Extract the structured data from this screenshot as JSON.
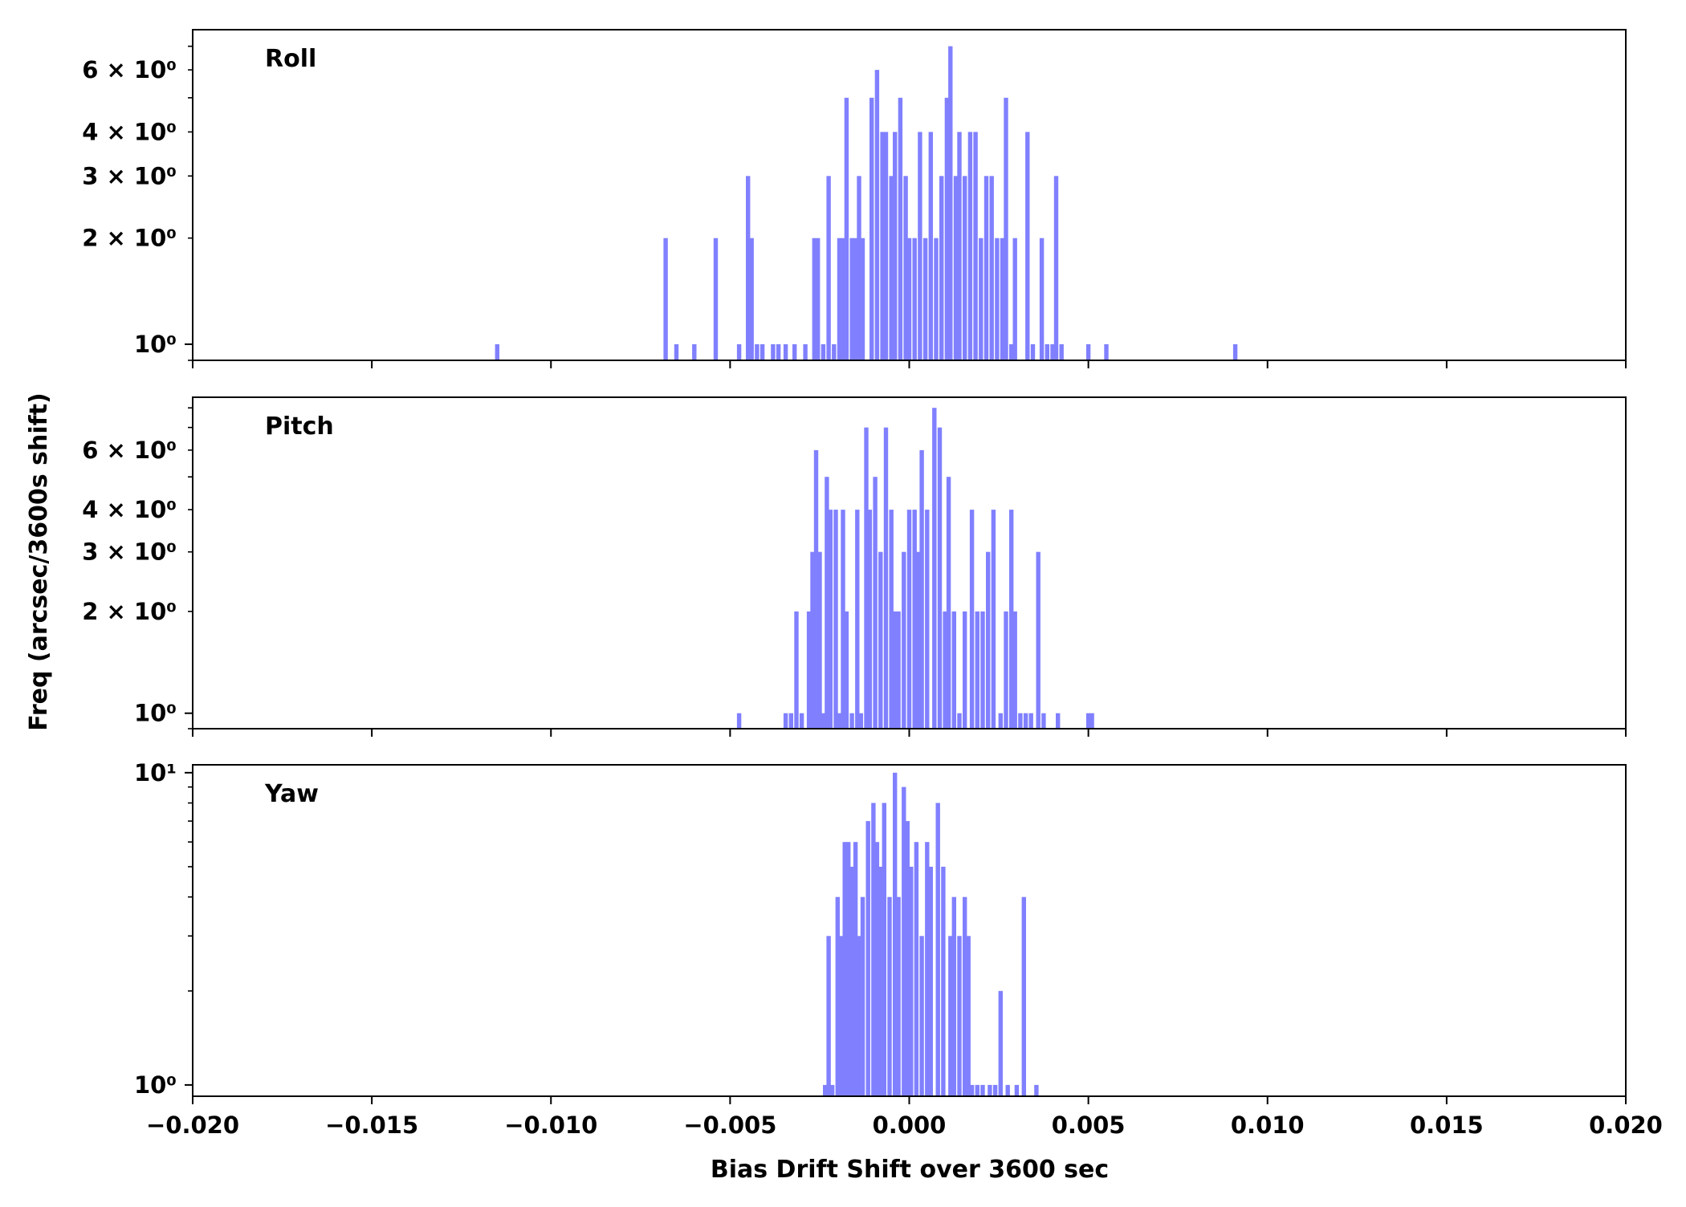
{
  "figure": {
    "ylabel": "Freq (arcsec/3600s shift)",
    "xlabel": "Bias Drift Shift over 3600 sec"
  },
  "chart_data": [
    {
      "type": "bar",
      "title": "Roll",
      "xlabel": "",
      "ylabel": "",
      "xlim": [
        -0.02,
        0.02
      ],
      "ylim": [
        0.9,
        7.8
      ],
      "yscale": "log",
      "bar_color": "#8080ff",
      "bin_width": 0.00012,
      "yticks": [
        {
          "value": 1,
          "label": "10⁰"
        },
        {
          "value": 2,
          "label": "2 × 10⁰"
        },
        {
          "value": 3,
          "label": "3 × 10⁰"
        },
        {
          "value": 4,
          "label": "4 × 10⁰"
        },
        {
          "value": 6,
          "label": "6 × 10⁰"
        }
      ],
      "bins": [
        {
          "x": -0.0115,
          "count": 1
        },
        {
          "x": -0.0068,
          "count": 2
        },
        {
          "x": -0.0065,
          "count": 1
        },
        {
          "x": -0.006,
          "count": 1
        },
        {
          "x": -0.0054,
          "count": 2
        },
        {
          "x": -0.00475,
          "count": 1
        },
        {
          "x": -0.0045,
          "count": 3
        },
        {
          "x": -0.0044,
          "count": 2
        },
        {
          "x": -0.00425,
          "count": 1
        },
        {
          "x": -0.0041,
          "count": 1
        },
        {
          "x": -0.0038,
          "count": 1
        },
        {
          "x": -0.00365,
          "count": 1
        },
        {
          "x": -0.00345,
          "count": 1
        },
        {
          "x": -0.0032,
          "count": 1
        },
        {
          "x": -0.0029,
          "count": 1
        },
        {
          "x": -0.00265,
          "count": 2
        },
        {
          "x": -0.00255,
          "count": 2
        },
        {
          "x": -0.0024,
          "count": 1
        },
        {
          "x": -0.00225,
          "count": 3
        },
        {
          "x": -0.0021,
          "count": 1
        },
        {
          "x": -0.00195,
          "count": 2
        },
        {
          "x": -0.00185,
          "count": 2
        },
        {
          "x": -0.00175,
          "count": 5
        },
        {
          "x": -0.0016,
          "count": 2
        },
        {
          "x": -0.0015,
          "count": 2
        },
        {
          "x": -0.0014,
          "count": 3
        },
        {
          "x": -0.0013,
          "count": 2
        },
        {
          "x": -0.00105,
          "count": 5
        },
        {
          "x": -0.0009,
          "count": 6
        },
        {
          "x": -0.00075,
          "count": 4
        },
        {
          "x": -0.00065,
          "count": 4
        },
        {
          "x": -0.0005,
          "count": 3
        },
        {
          "x": -0.0004,
          "count": 4
        },
        {
          "x": -0.00025,
          "count": 5
        },
        {
          "x": -0.0001,
          "count": 3
        },
        {
          "x": 0.0,
          "count": 2
        },
        {
          "x": 0.00015,
          "count": 2
        },
        {
          "x": 0.0003,
          "count": 4
        },
        {
          "x": 0.00045,
          "count": 2
        },
        {
          "x": 0.0006,
          "count": 4
        },
        {
          "x": 0.00075,
          "count": 2
        },
        {
          "x": 0.0009,
          "count": 3
        },
        {
          "x": 0.00105,
          "count": 5
        },
        {
          "x": 0.00115,
          "count": 7
        },
        {
          "x": 0.0013,
          "count": 3
        },
        {
          "x": 0.0014,
          "count": 4
        },
        {
          "x": 0.00155,
          "count": 3
        },
        {
          "x": 0.0017,
          "count": 4
        },
        {
          "x": 0.00185,
          "count": 4
        },
        {
          "x": 0.002,
          "count": 2
        },
        {
          "x": 0.00215,
          "count": 3
        },
        {
          "x": 0.0023,
          "count": 3
        },
        {
          "x": 0.00245,
          "count": 2
        },
        {
          "x": 0.0026,
          "count": 2
        },
        {
          "x": 0.0027,
          "count": 5
        },
        {
          "x": 0.00285,
          "count": 1
        },
        {
          "x": 0.00295,
          "count": 2
        },
        {
          "x": 0.0033,
          "count": 4
        },
        {
          "x": 0.00345,
          "count": 1
        },
        {
          "x": 0.0037,
          "count": 2
        },
        {
          "x": 0.00385,
          "count": 1
        },
        {
          "x": 0.004,
          "count": 1
        },
        {
          "x": 0.0041,
          "count": 3
        },
        {
          "x": 0.00425,
          "count": 1
        },
        {
          "x": 0.005,
          "count": 1
        },
        {
          "x": 0.0055,
          "count": 1
        },
        {
          "x": 0.0091,
          "count": 1
        }
      ]
    },
    {
      "type": "bar",
      "title": "Pitch",
      "xlabel": "",
      "ylabel": "",
      "xlim": [
        -0.02,
        0.02
      ],
      "ylim": [
        0.9,
        8.6
      ],
      "yscale": "log",
      "bar_color": "#8080ff",
      "bin_width": 0.00012,
      "yticks": [
        {
          "value": 1,
          "label": "10⁰"
        },
        {
          "value": 2,
          "label": "2 × 10⁰"
        },
        {
          "value": 3,
          "label": "3 × 10⁰"
        },
        {
          "value": 4,
          "label": "4 × 10⁰"
        },
        {
          "value": 6,
          "label": "6 × 10⁰"
        }
      ],
      "bins": [
        {
          "x": -0.00475,
          "count": 1
        },
        {
          "x": -0.00345,
          "count": 1
        },
        {
          "x": -0.0033,
          "count": 1
        },
        {
          "x": -0.00315,
          "count": 2
        },
        {
          "x": -0.003,
          "count": 1
        },
        {
          "x": -0.0028,
          "count": 2
        },
        {
          "x": -0.00275,
          "count": 1
        },
        {
          "x": -0.0027,
          "count": 3
        },
        {
          "x": -0.0026,
          "count": 6
        },
        {
          "x": -0.0025,
          "count": 3
        },
        {
          "x": -0.0024,
          "count": 1
        },
        {
          "x": -0.0023,
          "count": 5
        },
        {
          "x": -0.0022,
          "count": 4
        },
        {
          "x": -0.00205,
          "count": 4
        },
        {
          "x": -0.00195,
          "count": 1
        },
        {
          "x": -0.00185,
          "count": 4
        },
        {
          "x": -0.00175,
          "count": 2
        },
        {
          "x": -0.0016,
          "count": 1
        },
        {
          "x": -0.00145,
          "count": 4
        },
        {
          "x": -0.00135,
          "count": 1
        },
        {
          "x": -0.0012,
          "count": 7
        },
        {
          "x": -0.0011,
          "count": 4
        },
        {
          "x": -0.00095,
          "count": 5
        },
        {
          "x": -0.0008,
          "count": 3
        },
        {
          "x": -0.00065,
          "count": 7
        },
        {
          "x": -0.0005,
          "count": 4
        },
        {
          "x": -0.0004,
          "count": 2
        },
        {
          "x": -0.0003,
          "count": 2
        },
        {
          "x": -0.00015,
          "count": 3
        },
        {
          "x": 0.0,
          "count": 4
        },
        {
          "x": 0.00015,
          "count": 4
        },
        {
          "x": 0.00025,
          "count": 3
        },
        {
          "x": 0.00035,
          "count": 6
        },
        {
          "x": 0.0005,
          "count": 4
        },
        {
          "x": 0.0007,
          "count": 8
        },
        {
          "x": 0.00085,
          "count": 7
        },
        {
          "x": 0.001,
          "count": 2
        },
        {
          "x": 0.0011,
          "count": 5
        },
        {
          "x": 0.00125,
          "count": 2
        },
        {
          "x": 0.0014,
          "count": 1
        },
        {
          "x": 0.00155,
          "count": 2
        },
        {
          "x": 0.00175,
          "count": 4
        },
        {
          "x": 0.0019,
          "count": 2
        },
        {
          "x": 0.00205,
          "count": 2
        },
        {
          "x": 0.0022,
          "count": 3
        },
        {
          "x": 0.00235,
          "count": 4
        },
        {
          "x": 0.00255,
          "count": 1
        },
        {
          "x": 0.0027,
          "count": 2
        },
        {
          "x": 0.00285,
          "count": 4
        },
        {
          "x": 0.00295,
          "count": 2
        },
        {
          "x": 0.0031,
          "count": 1
        },
        {
          "x": 0.00325,
          "count": 1
        },
        {
          "x": 0.0034,
          "count": 1
        },
        {
          "x": 0.0036,
          "count": 3
        },
        {
          "x": 0.00375,
          "count": 1
        },
        {
          "x": 0.00415,
          "count": 1
        },
        {
          "x": 0.005,
          "count": 1
        },
        {
          "x": 0.0051,
          "count": 1
        }
      ]
    },
    {
      "type": "bar",
      "title": "Yaw",
      "xlabel": "",
      "ylabel": "",
      "xlim": [
        -0.02,
        0.02
      ],
      "ylim": [
        0.92,
        10.6
      ],
      "yscale": "log",
      "bar_color": "#8080ff",
      "bin_width": 0.00012,
      "xticks": [
        -0.02,
        -0.015,
        -0.01,
        -0.005,
        0.0,
        0.005,
        0.01,
        0.015,
        0.02
      ],
      "xtick_labels": [
        "−0.020",
        "−0.015",
        "−0.010",
        "−0.005",
        "0.000",
        "0.005",
        "0.010",
        "0.015",
        "0.020"
      ],
      "yticks": [
        {
          "value": 1,
          "label": "10⁰"
        },
        {
          "value": 10,
          "label": "10¹"
        }
      ],
      "bins": [
        {
          "x": -0.00235,
          "count": 1
        },
        {
          "x": -0.00225,
          "count": 3
        },
        {
          "x": -0.00215,
          "count": 1
        },
        {
          "x": -0.002,
          "count": 4
        },
        {
          "x": -0.0019,
          "count": 3
        },
        {
          "x": -0.0018,
          "count": 6
        },
        {
          "x": -0.0017,
          "count": 6
        },
        {
          "x": -0.0016,
          "count": 5
        },
        {
          "x": -0.0015,
          "count": 6
        },
        {
          "x": -0.0014,
          "count": 3
        },
        {
          "x": -0.0013,
          "count": 4
        },
        {
          "x": -0.00115,
          "count": 7
        },
        {
          "x": -0.001,
          "count": 8
        },
        {
          "x": -0.0009,
          "count": 6
        },
        {
          "x": -0.0008,
          "count": 5
        },
        {
          "x": -0.0007,
          "count": 8
        },
        {
          "x": -0.00055,
          "count": 4
        },
        {
          "x": -0.0004,
          "count": 10
        },
        {
          "x": -0.0003,
          "count": 4
        },
        {
          "x": -0.00015,
          "count": 9
        },
        {
          "x": -5e-05,
          "count": 7
        },
        {
          "x": 5e-05,
          "count": 5
        },
        {
          "x": 0.0002,
          "count": 6
        },
        {
          "x": 0.00035,
          "count": 3
        },
        {
          "x": 0.0005,
          "count": 6
        },
        {
          "x": 0.0006,
          "count": 5
        },
        {
          "x": 0.0008,
          "count": 8
        },
        {
          "x": 0.00095,
          "count": 5
        },
        {
          "x": 0.00115,
          "count": 3
        },
        {
          "x": 0.00125,
          "count": 4
        },
        {
          "x": 0.0014,
          "count": 3
        },
        {
          "x": 0.00155,
          "count": 4
        },
        {
          "x": 0.00165,
          "count": 3
        },
        {
          "x": 0.00175,
          "count": 1
        },
        {
          "x": 0.0019,
          "count": 1
        },
        {
          "x": 0.00205,
          "count": 1
        },
        {
          "x": 0.00225,
          "count": 1
        },
        {
          "x": 0.0024,
          "count": 1
        },
        {
          "x": 0.00255,
          "count": 2
        },
        {
          "x": 0.00275,
          "count": 1
        },
        {
          "x": 0.003,
          "count": 1
        },
        {
          "x": 0.0032,
          "count": 4
        },
        {
          "x": 0.00355,
          "count": 1
        }
      ]
    }
  ]
}
